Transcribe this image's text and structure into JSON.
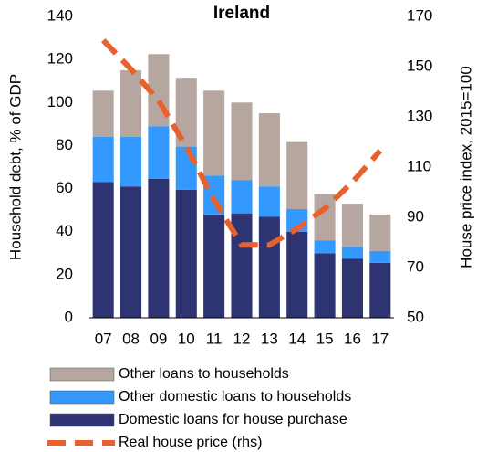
{
  "chart_data": {
    "type": "bar",
    "title": "Ireland",
    "categories": [
      "07",
      "08",
      "09",
      "10",
      "11",
      "12",
      "13",
      "14",
      "15",
      "16",
      "17"
    ],
    "y_label": "Household debt, % of GDP",
    "y2_label": "House price index, 2015=100",
    "ylim": [
      0,
      140
    ],
    "yticks": [
      0,
      20,
      40,
      60,
      80,
      100,
      120,
      140
    ],
    "y2lim": [
      50,
      170
    ],
    "y2ticks": [
      50,
      70,
      90,
      110,
      130,
      150,
      170
    ],
    "series": [
      {
        "name": "Domestic loans for house purchase",
        "color": "#2e3472",
        "type": "bar",
        "values": [
          63,
          61,
          64.5,
          59.5,
          48,
          48.5,
          47,
          40,
          30,
          27.5,
          25.5
        ]
      },
      {
        "name": "Other domestic loans to households",
        "color": "#3399ff",
        "type": "bar",
        "values": [
          21,
          23,
          24.5,
          20,
          18,
          15.5,
          14,
          10.5,
          6,
          5.5,
          5.5
        ]
      },
      {
        "name": "Other loans to households",
        "color": "#b5a69f",
        "type": "bar",
        "values": [
          21.5,
          31,
          33.5,
          32,
          39.5,
          36,
          34,
          31.5,
          21.5,
          20,
          17
        ]
      },
      {
        "name": "Real house price (rhs)",
        "color": "#e8602c",
        "type": "line",
        "axis": "y2",
        "values": [
          160.5,
          149,
          136.5,
          118,
          97,
          79,
          79,
          85.5,
          93.5,
          104,
          116.5
        ]
      }
    ]
  }
}
